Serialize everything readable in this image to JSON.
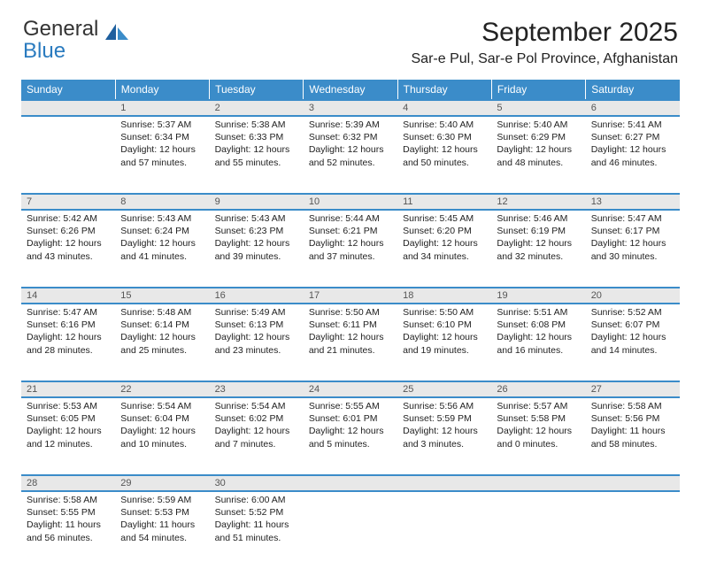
{
  "brand": {
    "line1": "General",
    "line2": "Blue"
  },
  "title": "September 2025",
  "location": "Sar-e Pul, Sar-e Pol Province, Afghanistan",
  "weekdays": [
    "Sunday",
    "Monday",
    "Tuesday",
    "Wednesday",
    "Thursday",
    "Friday",
    "Saturday"
  ],
  "colors": {
    "header_bg": "#3b8cc9",
    "header_text": "#ffffff",
    "daynum_bg": "#e8e8e8",
    "rule": "#3b8cc9",
    "brand_blue": "#2a7bbf"
  },
  "weeks": [
    {
      "nums": [
        "",
        "1",
        "2",
        "3",
        "4",
        "5",
        "6"
      ],
      "cells": [
        null,
        {
          "sunrise": "5:37 AM",
          "sunset": "6:34 PM",
          "daylight": "12 hours and 57 minutes."
        },
        {
          "sunrise": "5:38 AM",
          "sunset": "6:33 PM",
          "daylight": "12 hours and 55 minutes."
        },
        {
          "sunrise": "5:39 AM",
          "sunset": "6:32 PM",
          "daylight": "12 hours and 52 minutes."
        },
        {
          "sunrise": "5:40 AM",
          "sunset": "6:30 PM",
          "daylight": "12 hours and 50 minutes."
        },
        {
          "sunrise": "5:40 AM",
          "sunset": "6:29 PM",
          "daylight": "12 hours and 48 minutes."
        },
        {
          "sunrise": "5:41 AM",
          "sunset": "6:27 PM",
          "daylight": "12 hours and 46 minutes."
        }
      ]
    },
    {
      "nums": [
        "7",
        "8",
        "9",
        "10",
        "11",
        "12",
        "13"
      ],
      "cells": [
        {
          "sunrise": "5:42 AM",
          "sunset": "6:26 PM",
          "daylight": "12 hours and 43 minutes."
        },
        {
          "sunrise": "5:43 AM",
          "sunset": "6:24 PM",
          "daylight": "12 hours and 41 minutes."
        },
        {
          "sunrise": "5:43 AM",
          "sunset": "6:23 PM",
          "daylight": "12 hours and 39 minutes."
        },
        {
          "sunrise": "5:44 AM",
          "sunset": "6:21 PM",
          "daylight": "12 hours and 37 minutes."
        },
        {
          "sunrise": "5:45 AM",
          "sunset": "6:20 PM",
          "daylight": "12 hours and 34 minutes."
        },
        {
          "sunrise": "5:46 AM",
          "sunset": "6:19 PM",
          "daylight": "12 hours and 32 minutes."
        },
        {
          "sunrise": "5:47 AM",
          "sunset": "6:17 PM",
          "daylight": "12 hours and 30 minutes."
        }
      ]
    },
    {
      "nums": [
        "14",
        "15",
        "16",
        "17",
        "18",
        "19",
        "20"
      ],
      "cells": [
        {
          "sunrise": "5:47 AM",
          "sunset": "6:16 PM",
          "daylight": "12 hours and 28 minutes."
        },
        {
          "sunrise": "5:48 AM",
          "sunset": "6:14 PM",
          "daylight": "12 hours and 25 minutes."
        },
        {
          "sunrise": "5:49 AM",
          "sunset": "6:13 PM",
          "daylight": "12 hours and 23 minutes."
        },
        {
          "sunrise": "5:50 AM",
          "sunset": "6:11 PM",
          "daylight": "12 hours and 21 minutes."
        },
        {
          "sunrise": "5:50 AM",
          "sunset": "6:10 PM",
          "daylight": "12 hours and 19 minutes."
        },
        {
          "sunrise": "5:51 AM",
          "sunset": "6:08 PM",
          "daylight": "12 hours and 16 minutes."
        },
        {
          "sunrise": "5:52 AM",
          "sunset": "6:07 PM",
          "daylight": "12 hours and 14 minutes."
        }
      ]
    },
    {
      "nums": [
        "21",
        "22",
        "23",
        "24",
        "25",
        "26",
        "27"
      ],
      "cells": [
        {
          "sunrise": "5:53 AM",
          "sunset": "6:05 PM",
          "daylight": "12 hours and 12 minutes."
        },
        {
          "sunrise": "5:54 AM",
          "sunset": "6:04 PM",
          "daylight": "12 hours and 10 minutes."
        },
        {
          "sunrise": "5:54 AM",
          "sunset": "6:02 PM",
          "daylight": "12 hours and 7 minutes."
        },
        {
          "sunrise": "5:55 AM",
          "sunset": "6:01 PM",
          "daylight": "12 hours and 5 minutes."
        },
        {
          "sunrise": "5:56 AM",
          "sunset": "5:59 PM",
          "daylight": "12 hours and 3 minutes."
        },
        {
          "sunrise": "5:57 AM",
          "sunset": "5:58 PM",
          "daylight": "12 hours and 0 minutes."
        },
        {
          "sunrise": "5:58 AM",
          "sunset": "5:56 PM",
          "daylight": "11 hours and 58 minutes."
        }
      ]
    },
    {
      "nums": [
        "28",
        "29",
        "30",
        "",
        "",
        "",
        ""
      ],
      "cells": [
        {
          "sunrise": "5:58 AM",
          "sunset": "5:55 PM",
          "daylight": "11 hours and 56 minutes."
        },
        {
          "sunrise": "5:59 AM",
          "sunset": "5:53 PM",
          "daylight": "11 hours and 54 minutes."
        },
        {
          "sunrise": "6:00 AM",
          "sunset": "5:52 PM",
          "daylight": "11 hours and 51 minutes."
        },
        null,
        null,
        null,
        null
      ]
    }
  ],
  "labels": {
    "sunrise": "Sunrise:",
    "sunset": "Sunset:",
    "daylight": "Daylight:"
  }
}
